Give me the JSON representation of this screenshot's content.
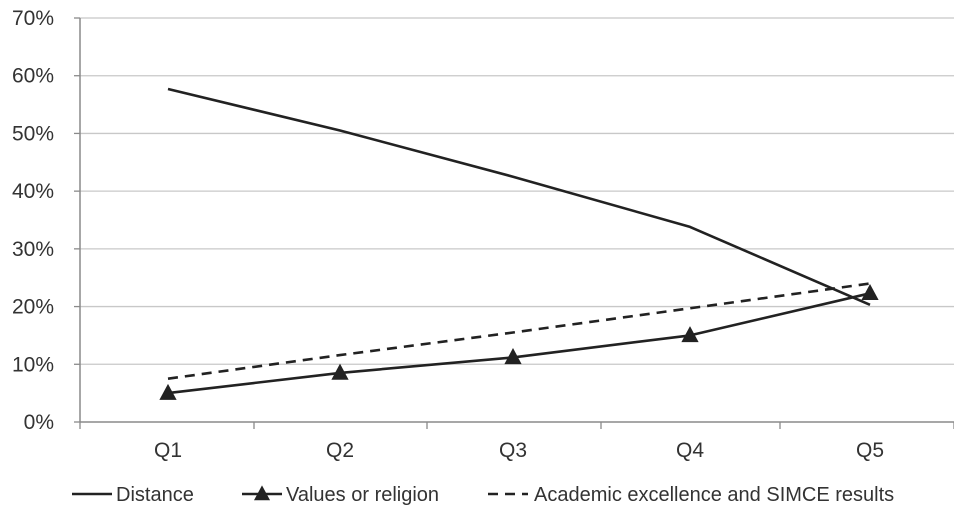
{
  "chart_data": {
    "type": "line",
    "title": "",
    "xlabel": "",
    "ylabel": "",
    "categories": [
      "Q1",
      "Q2",
      "Q3",
      "Q4",
      "Q5"
    ],
    "ylim": [
      0,
      70
    ],
    "y_ticks": [
      0,
      10,
      20,
      30,
      40,
      50,
      60,
      70
    ],
    "y_tick_labels": [
      "0%",
      "10%",
      "20%",
      "30%",
      "40%",
      "50%",
      "60%",
      "70%"
    ],
    "grid": "horizontal",
    "legend_position": "bottom",
    "series": [
      {
        "name": "Distance",
        "values": [
          57.7,
          50.5,
          42.5,
          33.8,
          20.3
        ],
        "style": "solid",
        "marker": "none",
        "color": "#222222"
      },
      {
        "name": "Values or religion",
        "values": [
          5.0,
          8.5,
          11.2,
          15.0,
          22.3
        ],
        "style": "solid",
        "marker": "triangle",
        "color": "#222222"
      },
      {
        "name": "Academic excellence and SIMCE results",
        "values": [
          7.5,
          11.6,
          15.5,
          19.7,
          24.0
        ],
        "style": "dashed",
        "marker": "none",
        "color": "#222222"
      }
    ]
  }
}
